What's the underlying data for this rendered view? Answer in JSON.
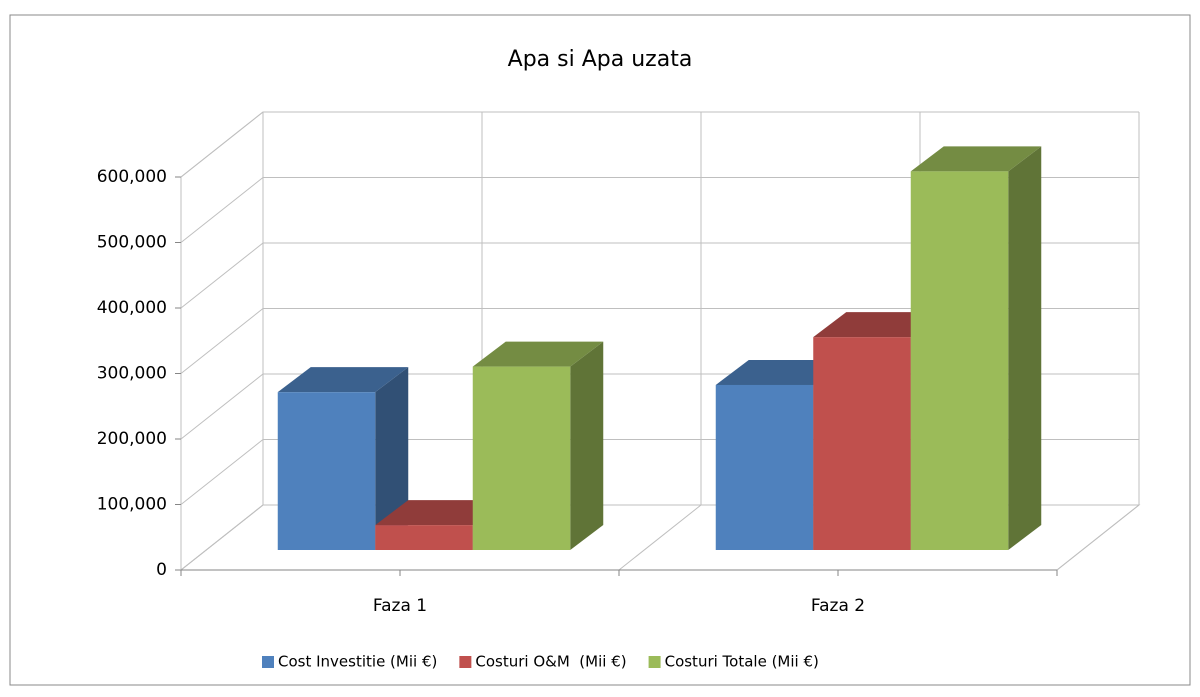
{
  "chart_data": {
    "type": "bar3d",
    "title": "Apa si Apa uzata",
    "categories": [
      "Faza 1",
      "Faza 2"
    ],
    "series": [
      {
        "name": "Cost Investitie (Mii €)",
        "color": "#4f81bd",
        "values": [
          241000,
          252000
        ]
      },
      {
        "name": "Costuri O&M  (Mii €)",
        "color": "#c0504d",
        "values": [
          38000,
          325000
        ]
      },
      {
        "name": "Costuri Totale (Mii €)",
        "color": "#9bbb59",
        "values": [
          280000,
          578000
        ]
      }
    ],
    "ylim": [
      0,
      600000
    ],
    "yticks": [
      0,
      {
        "value": 100000,
        "label": "100,000"
      },
      {
        "value": 200000,
        "label": "200,000"
      },
      {
        "value": 300000,
        "label": "300,000"
      },
      {
        "value": 400000,
        "label": "400,000"
      },
      {
        "value": 500000,
        "label": "500,000"
      },
      {
        "value": 600000,
        "label": "600,000"
      }
    ],
    "grid": true,
    "legend": "bottom"
  }
}
